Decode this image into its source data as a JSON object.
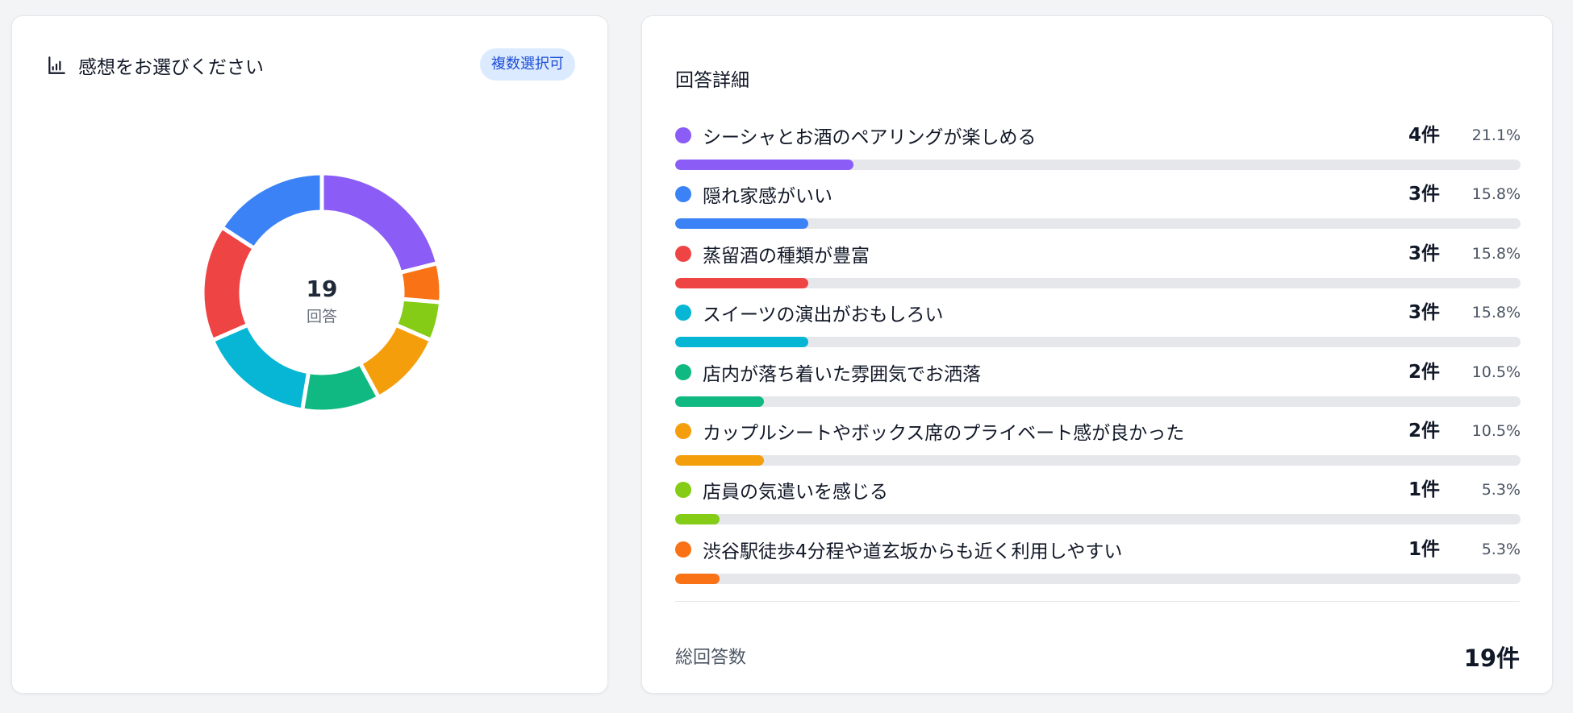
{
  "left_panel": {
    "title": "感想をお選びください",
    "badge": "複数選択可",
    "center_value": "19",
    "center_label": "回答"
  },
  "right_panel": {
    "title": "回答詳細",
    "total_label": "総回答数",
    "total_value": "19件"
  },
  "chart_data": {
    "type": "pie",
    "categories": [
      "シーシャとお酒のペアリングが楽しめる",
      "隠れ家感がいい",
      "蒸留酒の種類が豊富",
      "スイーツの演出がおもしろい",
      "店内が落ち着いた雰囲気でお洒落",
      "カップルシートやボックス席のプライベート感が良かった",
      "店員の気遣いを感じる",
      "渋谷駅徒歩4分程や道玄坂からも近く利用しやすい"
    ],
    "values": [
      4,
      3,
      3,
      3,
      2,
      2,
      1,
      1
    ],
    "count_labels": [
      "4件",
      "3件",
      "3件",
      "3件",
      "2件",
      "2件",
      "1件",
      "1件"
    ],
    "percent_labels": [
      "21.1%",
      "15.8%",
      "15.8%",
      "15.8%",
      "10.5%",
      "10.5%",
      "5.3%",
      "5.3%"
    ],
    "colors": [
      "#8b5cf6",
      "#3b82f6",
      "#ef4444",
      "#06b6d4",
      "#10b981",
      "#f59e0b",
      "#84cc16",
      "#f97316"
    ],
    "donut_order": [
      0,
      7,
      6,
      5,
      4,
      3,
      2,
      1
    ],
    "total": 19,
    "legend": "right"
  }
}
